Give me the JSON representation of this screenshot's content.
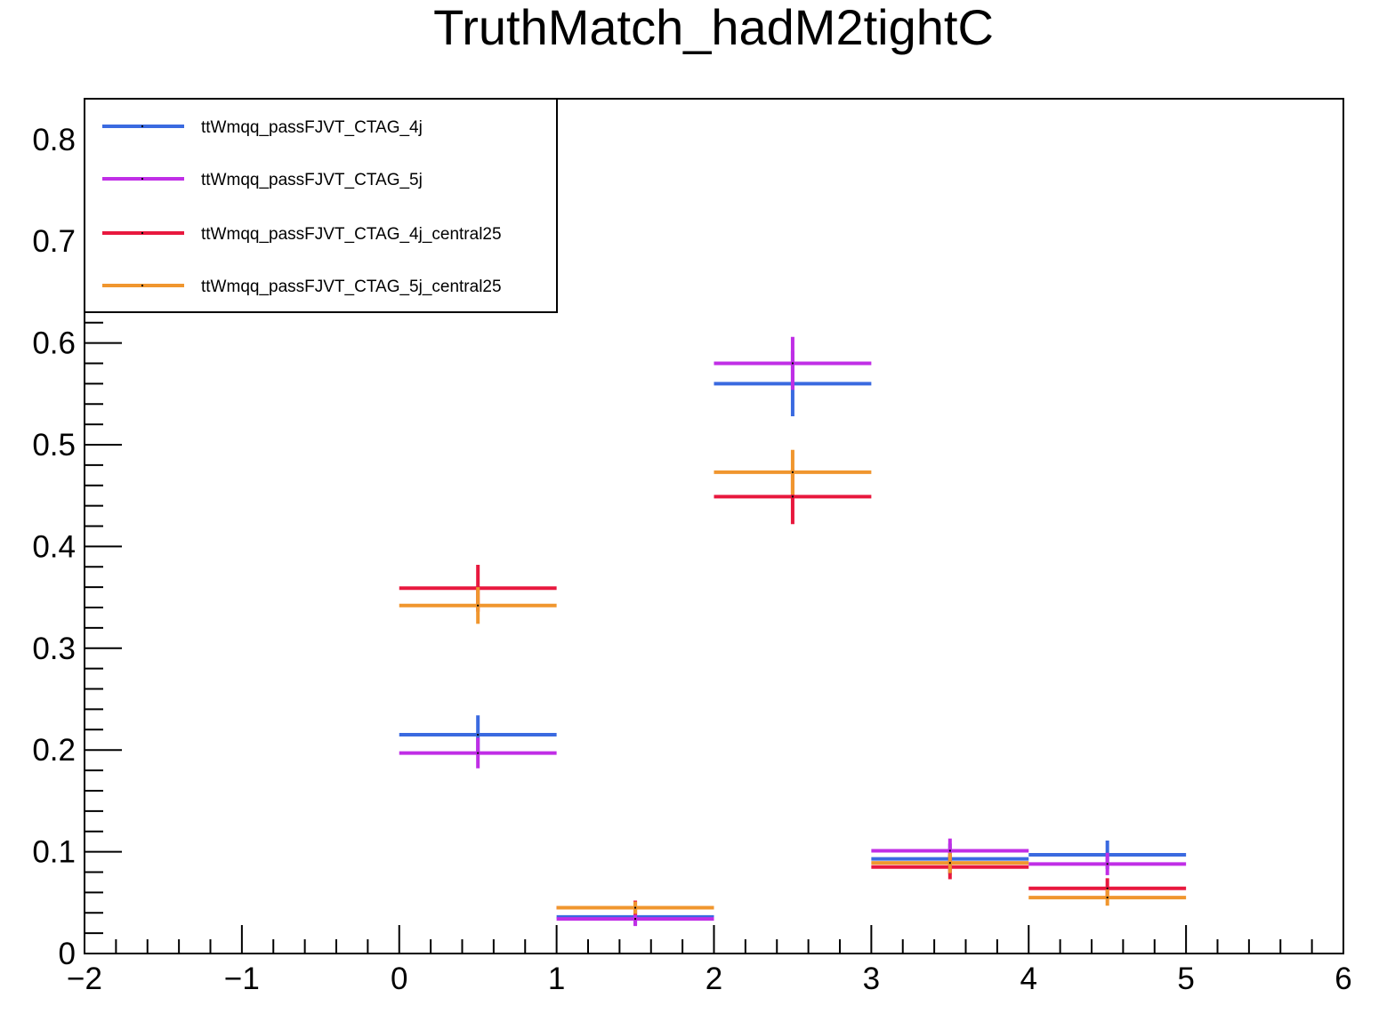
{
  "chart_data": {
    "type": "scatter",
    "title": "TruthMatch_hadM2tightC",
    "xlabel": "",
    "ylabel": "",
    "xlim": [
      -2,
      6
    ],
    "ylim": [
      0,
      0.84
    ],
    "x_ticks": [
      -2,
      -1,
      0,
      1,
      2,
      3,
      4,
      5,
      6
    ],
    "x_tick_labels": [
      "−2",
      "−1",
      "0",
      "1",
      "2",
      "3",
      "4",
      "5",
      "6"
    ],
    "y_ticks": [
      0,
      0.1,
      0.2,
      0.3,
      0.4,
      0.5,
      0.6,
      0.7,
      0.8
    ],
    "y_tick_labels": [
      "0",
      "0.1",
      "0.2",
      "0.3",
      "0.4",
      "0.5",
      "0.6",
      "0.7",
      "0.8"
    ],
    "grid": false,
    "legend_position": "top-left",
    "bin_edges": [
      0,
      1,
      2,
      3,
      4,
      5
    ],
    "series": [
      {
        "name": "ttWmqq_passFJVT_CTAG_4j",
        "color": "#3a6ae0",
        "values": [
          0.215,
          0.036,
          0.56,
          0.093,
          0.097
        ],
        "errors": [
          0.019,
          0.008,
          0.032,
          0.015,
          0.014
        ]
      },
      {
        "name": "ttWmqq_passFJVT_CTAG_5j",
        "color": "#c02ee6",
        "values": [
          0.197,
          0.034,
          0.58,
          0.101,
          0.088
        ],
        "errors": [
          0.015,
          0.007,
          0.026,
          0.012,
          0.011
        ]
      },
      {
        "name": "ttWmqq_passFJVT_CTAG_4j_central25",
        "color": "#e8183e",
        "values": [
          0.359,
          0.045,
          0.449,
          0.085,
          0.064
        ],
        "errors": [
          0.023,
          0.007,
          0.027,
          0.012,
          0.01
        ]
      },
      {
        "name": "ttWmqq_passFJVT_CTAG_5j_central25",
        "color": "#f0962e",
        "values": [
          0.342,
          0.045,
          0.473,
          0.089,
          0.055
        ],
        "errors": [
          0.018,
          0.006,
          0.022,
          0.01,
          0.008
        ]
      }
    ]
  }
}
